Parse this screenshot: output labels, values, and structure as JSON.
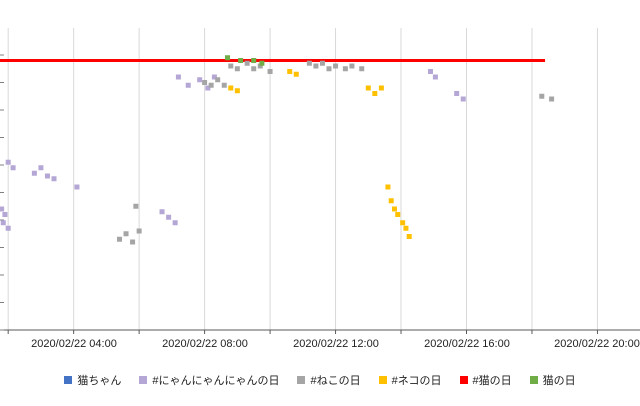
{
  "chart_data": {
    "type": "scatter",
    "title": "",
    "xlabel": "",
    "ylabel": "",
    "grid": "vertical",
    "legend_position": "bottom-center",
    "x_ticks": [
      "2020/02/22 04:00",
      "2020/02/22 08:00",
      "2020/02/22 12:00",
      "2020/02/22 16:00",
      "2020/02/22 20:00"
    ],
    "x_tick_hours": [
      4,
      8,
      12,
      16,
      20
    ],
    "gridline_hours": [
      2,
      4,
      6,
      8,
      10,
      12,
      14,
      16,
      18,
      20
    ],
    "x_range_hours": [
      1.75,
      21.3
    ],
    "ylim": [
      0,
      100
    ],
    "y_tick_step": 10,
    "series": [
      {
        "name": "猫ちゃん",
        "color": "#4472c4",
        "style": "points",
        "points": []
      },
      {
        "name": "#にゃんにゃんにゃんの日",
        "color": "#b4a7d6",
        "style": "points",
        "points": [
          [
            1.8,
            44
          ],
          [
            1.9,
            42
          ],
          [
            1.85,
            39
          ],
          [
            2.0,
            37
          ],
          [
            2.0,
            61
          ],
          [
            2.15,
            59
          ],
          [
            2.8,
            57
          ],
          [
            3.0,
            59
          ],
          [
            3.2,
            56
          ],
          [
            3.4,
            55
          ],
          [
            4.1,
            52
          ],
          [
            6.7,
            43
          ],
          [
            6.9,
            41
          ],
          [
            7.1,
            39
          ],
          [
            7.2,
            92
          ],
          [
            7.5,
            89
          ],
          [
            7.85,
            91
          ],
          [
            8.1,
            88
          ],
          [
            8.3,
            92
          ],
          [
            14.9,
            94
          ],
          [
            15.05,
            92
          ],
          [
            15.7,
            86
          ],
          [
            15.9,
            84
          ]
        ]
      },
      {
        "name": "#ねこの日",
        "color": "#a5a5a5",
        "style": "points",
        "points": [
          [
            5.4,
            33
          ],
          [
            5.6,
            35
          ],
          [
            5.8,
            32
          ],
          [
            6.0,
            36
          ],
          [
            5.9,
            45
          ],
          [
            8.0,
            90
          ],
          [
            8.2,
            89
          ],
          [
            8.4,
            91
          ],
          [
            8.6,
            89
          ],
          [
            8.8,
            96
          ],
          [
            9.0,
            95
          ],
          [
            9.3,
            97
          ],
          [
            9.5,
            95
          ],
          [
            9.7,
            96
          ],
          [
            10.0,
            94
          ],
          [
            11.2,
            97
          ],
          [
            11.4,
            96
          ],
          [
            11.6,
            97
          ],
          [
            11.8,
            95
          ],
          [
            12.0,
            96
          ],
          [
            12.3,
            95
          ],
          [
            12.5,
            96
          ],
          [
            12.8,
            95
          ],
          [
            18.3,
            85
          ],
          [
            18.6,
            84
          ]
        ]
      },
      {
        "name": "#ネコの日",
        "color": "#ffc000",
        "style": "points",
        "points": [
          [
            8.8,
            88
          ],
          [
            9.0,
            87
          ],
          [
            10.6,
            94
          ],
          [
            10.8,
            93
          ],
          [
            13.0,
            88
          ],
          [
            13.2,
            86
          ],
          [
            13.4,
            88
          ],
          [
            13.6,
            52
          ],
          [
            13.7,
            47
          ],
          [
            13.8,
            44
          ],
          [
            13.9,
            42
          ],
          [
            14.05,
            39
          ],
          [
            14.15,
            37
          ],
          [
            14.25,
            34
          ]
        ]
      },
      {
        "name": "#猫の日",
        "color": "#ff0000",
        "style": "line",
        "points": [
          [
            1.75,
            98
          ],
          [
            18.4,
            98
          ]
        ]
      },
      {
        "name": "猫の日",
        "color": "#70ad47",
        "style": "points",
        "points": [
          [
            8.7,
            99
          ],
          [
            9.1,
            98
          ],
          [
            9.5,
            98
          ],
          [
            9.75,
            97
          ]
        ]
      }
    ]
  }
}
